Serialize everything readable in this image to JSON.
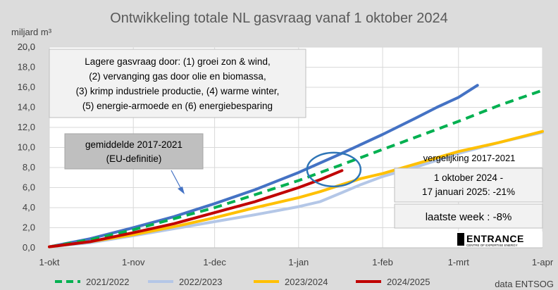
{
  "chart_data": {
    "type": "line",
    "title": "Ontwikkeling totale NL gasvraag vanaf 1 oktober 2024",
    "ylabel": "miljard m³",
    "xlabel": "",
    "ylim": [
      0,
      20
    ],
    "yticks": [
      "0,0",
      "2,0",
      "4,0",
      "6,0",
      "8,0",
      "10,0",
      "12,0",
      "14,0",
      "16,0",
      "18,0",
      "20,0"
    ],
    "xticks": [
      "1-okt",
      "1-nov",
      "1-dec",
      "1-jan",
      "1-feb",
      "1-mrt",
      "1-apr"
    ],
    "xtick_days": [
      0,
      31,
      61,
      92,
      123,
      151,
      182
    ],
    "x_unit": "days since 1-okt",
    "grid": true,
    "legend_position": "bottom",
    "series": [
      {
        "name": "gemiddelde 2017-2021 (EU-definitie)",
        "color": "#4472c4",
        "dash": false,
        "legend": false,
        "points": [
          [
            0,
            0.1
          ],
          [
            15,
            0.9
          ],
          [
            31,
            2.0
          ],
          [
            46,
            3.1
          ],
          [
            61,
            4.4
          ],
          [
            76,
            5.8
          ],
          [
            92,
            7.5
          ],
          [
            107,
            9.3
          ],
          [
            123,
            11.3
          ],
          [
            135,
            12.9
          ],
          [
            143,
            14.0
          ],
          [
            151,
            15.0
          ],
          [
            158,
            16.2
          ]
        ]
      },
      {
        "name": "2021/2022",
        "color": "#00b050",
        "dash": true,
        "legend": true,
        "points": [
          [
            0,
            0.1
          ],
          [
            15,
            0.8
          ],
          [
            31,
            1.8
          ],
          [
            46,
            2.9
          ],
          [
            61,
            4.0
          ],
          [
            76,
            5.3
          ],
          [
            92,
            6.7
          ],
          [
            107,
            8.2
          ],
          [
            123,
            9.8
          ],
          [
            137,
            11.2
          ],
          [
            151,
            12.6
          ],
          [
            166,
            14.2
          ],
          [
            182,
            15.7
          ]
        ]
      },
      {
        "name": "2022/2023",
        "color": "#b4c7e7",
        "dash": false,
        "legend": true,
        "points": [
          [
            0,
            0.1
          ],
          [
            15,
            0.5
          ],
          [
            31,
            1.2
          ],
          [
            46,
            1.9
          ],
          [
            61,
            2.6
          ],
          [
            76,
            3.3
          ],
          [
            92,
            4.1
          ],
          [
            100,
            4.6
          ],
          [
            108,
            5.5
          ],
          [
            115,
            6.3
          ],
          [
            123,
            7.1
          ],
          [
            137,
            8.2
          ],
          [
            151,
            9.4
          ],
          [
            166,
            10.5
          ],
          [
            182,
            11.5
          ]
        ]
      },
      {
        "name": "2023/2024",
        "color": "#ffc000",
        "dash": false,
        "legend": true,
        "points": [
          [
            0,
            0.1
          ],
          [
            15,
            0.6
          ],
          [
            31,
            1.3
          ],
          [
            46,
            2.1
          ],
          [
            61,
            3.0
          ],
          [
            76,
            4.0
          ],
          [
            92,
            5.0
          ],
          [
            100,
            5.6
          ],
          [
            108,
            6.3
          ],
          [
            115,
            6.9
          ],
          [
            123,
            7.4
          ],
          [
            137,
            8.5
          ],
          [
            151,
            9.6
          ],
          [
            166,
            10.5
          ],
          [
            182,
            11.6
          ]
        ]
      },
      {
        "name": "2024/2025",
        "color": "#c00000",
        "dash": false,
        "legend": true,
        "points": [
          [
            0,
            0.1
          ],
          [
            15,
            0.6
          ],
          [
            31,
            1.5
          ],
          [
            46,
            2.4
          ],
          [
            61,
            3.5
          ],
          [
            76,
            4.6
          ],
          [
            92,
            6.0
          ],
          [
            100,
            6.8
          ],
          [
            108,
            7.7
          ]
        ]
      }
    ],
    "annotations": {
      "gasvraag_box": "Lagere gasvraag door: (1) groei zon & wind,\n(2) vervanging gas door olie en biomassa,\n(3) krimp industriele productie, (4) warme winter,\n(5) energie-armoede en (6) energiebesparing",
      "gemiddelde_box": "gemiddelde 2017-2021\n(EU-definitie)",
      "vergelijking_label": "vergelijking 2017-2021",
      "periode_box": "1 oktober 2024 -\n17 januari 2025: -21%",
      "laatste_week_box": "laatste week : -8%",
      "source": "data ENTSOG",
      "logo_text": "ENTRANCE",
      "logo_subtext": "CENTRE OF EXPERTISE ENERGY"
    },
    "highlight_circle": {
      "center_day": 105,
      "center_value": 7.8,
      "color": "#2e75b6"
    }
  }
}
